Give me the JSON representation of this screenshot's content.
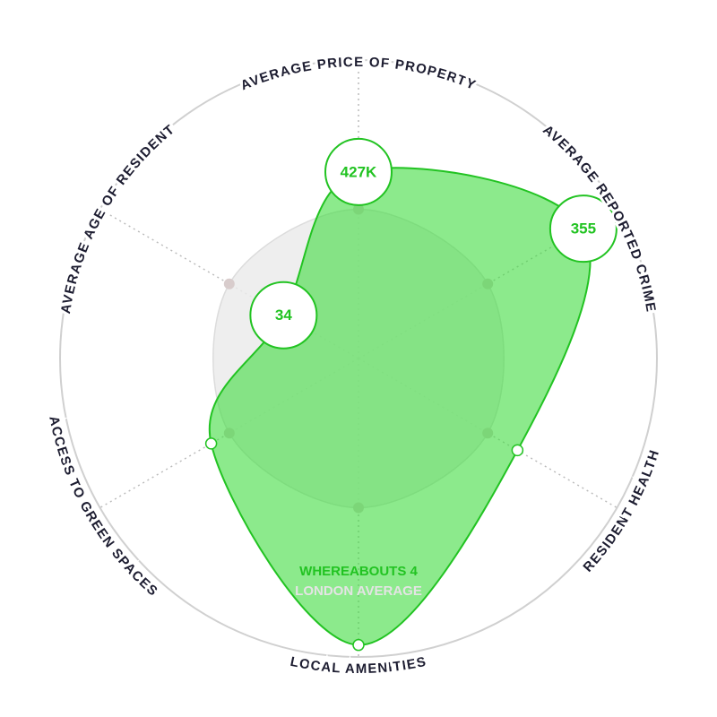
{
  "chart_data": {
    "type": "radar",
    "categories": [
      "AVERAGE PRICE OF PROPERTY",
      "AVERAGE REPORTED CRIME",
      "RESIDENT HEALTH",
      "LOCAL AMENITIES",
      "ACCESS TO GREEN SPACES",
      "AVERAGE AGE OF RESIDENT"
    ],
    "rlim": [
      0,
      100
    ],
    "series": [
      {
        "name": "WHEREABOUTS 4",
        "color": "#22c322",
        "values": [
          62.5,
          87,
          61.5,
          96,
          57,
          29
        ]
      },
      {
        "name": "LONDON AVERAGE",
        "color": "#e4e4e4",
        "values": [
          50,
          50,
          50,
          50,
          50,
          50
        ]
      }
    ],
    "callouts": [
      "427K",
      "355",
      null,
      null,
      null,
      "34"
    ]
  }
}
